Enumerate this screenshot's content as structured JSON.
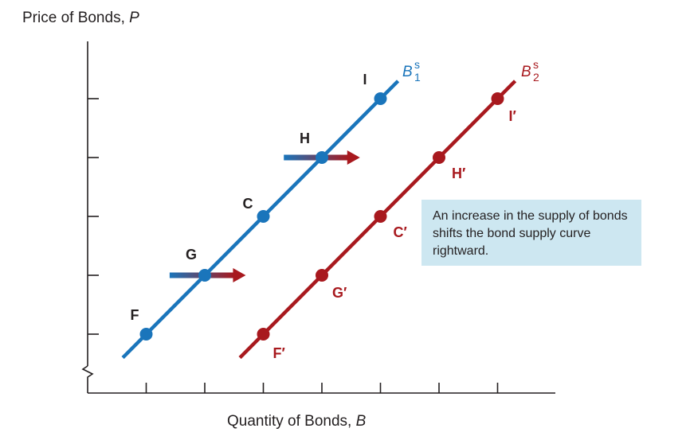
{
  "chart_data": {
    "type": "line",
    "title": "",
    "ylabel": "Price of Bonds, P",
    "xlabel": "Quantity of Bonds, B",
    "ylabel_parts": {
      "text": "Price of Bonds, ",
      "var": "P"
    },
    "xlabel_parts": {
      "text": "Quantity of Bonds, ",
      "var": "B"
    },
    "xlim": [
      0,
      8
    ],
    "ylim": [
      0,
      6
    ],
    "x_ticks": [
      1,
      2,
      3,
      4,
      5,
      6,
      7
    ],
    "y_ticks": [
      1,
      2,
      3,
      4,
      5
    ],
    "tick_labels_shown": false,
    "series": [
      {
        "name": "B^s_1",
        "label": {
          "main": "B",
          "sup": "s",
          "sub": "1"
        },
        "color": "#1a75bb",
        "line_x": [
          0.6,
          5.3
        ],
        "points": [
          {
            "label": "F",
            "x": 1,
            "y": 1
          },
          {
            "label": "G",
            "x": 2,
            "y": 2
          },
          {
            "label": "C",
            "x": 3,
            "y": 3
          },
          {
            "label": "H",
            "x": 4,
            "y": 4
          },
          {
            "label": "I",
            "x": 5,
            "y": 5
          }
        ]
      },
      {
        "name": "B^s_2",
        "label": {
          "main": "B",
          "sup": "s",
          "sub": "2"
        },
        "color": "#a8191e",
        "line_x": [
          2.6,
          7.3
        ],
        "points": [
          {
            "label": "F′",
            "x": 3,
            "y": 1
          },
          {
            "label": "G′",
            "x": 4,
            "y": 2
          },
          {
            "label": "C′",
            "x": 5,
            "y": 3
          },
          {
            "label": "H′",
            "x": 6,
            "y": 4
          },
          {
            "label": "I′",
            "x": 7,
            "y": 5
          }
        ]
      }
    ],
    "shift_arrows": [
      {
        "from": [
          1.4,
          2
        ],
        "to": [
          2.7,
          2
        ]
      },
      {
        "from": [
          3.35,
          4
        ],
        "to": [
          4.65,
          4
        ]
      }
    ],
    "annotation": "An increase in the supply of bonds shifts the bond supply curve rightward."
  }
}
